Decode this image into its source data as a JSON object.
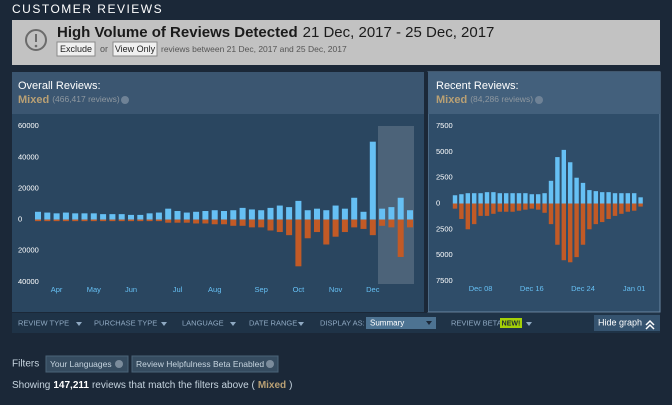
{
  "header": {
    "title": "CUSTOMER REVIEWS"
  },
  "banner": {
    "title": "High Volume of Reviews Detected",
    "dates": "21 Dec, 2017 - 25 Dec, 2017",
    "exclude": "Exclude",
    "or": "or",
    "view_only": "View Only",
    "note": "reviews between 21 Dec, 2017 and 25 Dec, 2017"
  },
  "summaries": [
    {
      "label": "Overall Reviews:",
      "rating": "Mixed",
      "count": "(466,417 reviews)"
    },
    {
      "label": "Recent Reviews:",
      "rating": "Mixed",
      "count": "(84,286 reviews)"
    }
  ],
  "chart_data": [
    {
      "type": "bar",
      "categories": [
        null,
        null,
        "Apr",
        null,
        null,
        null,
        "May",
        null,
        null,
        null,
        "Jun",
        null,
        null,
        null,
        null,
        "Jul",
        null,
        null,
        null,
        "Aug",
        null,
        null,
        null,
        null,
        "Sep",
        null,
        null,
        null,
        "Oct",
        null,
        null,
        null,
        "Nov",
        null,
        null,
        null,
        "Dec",
        null,
        null,
        null,
        null
      ],
      "series": [
        {
          "color": "#66c0f4",
          "values": [
            5000,
            4500,
            4000,
            4500,
            4000,
            4000,
            4000,
            3500,
            3500,
            3500,
            3000,
            3000,
            4000,
            4500,
            7000,
            5500,
            4500,
            5000,
            5500,
            6000,
            5500,
            6000,
            7500,
            6500,
            6000,
            7500,
            9000,
            8000,
            12000,
            6000,
            7000,
            6000,
            9000,
            7000,
            14000,
            5000,
            50000,
            7000,
            8000,
            14000,
            6000
          ]
        },
        {
          "color": "#c25a26",
          "values": [
            -1000,
            -1000,
            -1000,
            -1000,
            -1000,
            -1000,
            -1000,
            -1000,
            -1000,
            -1000,
            -1000,
            -1000,
            -1000,
            -1000,
            -2000,
            -2000,
            -2000,
            -2500,
            -2500,
            -3000,
            -3000,
            -4000,
            -4000,
            -5000,
            -5000,
            -7000,
            -8000,
            -10000,
            -30000,
            -12000,
            -8000,
            -16000,
            -11000,
            -8000,
            -5000,
            -6000,
            -10000,
            -4000,
            -5000,
            -24000,
            -5000
          ]
        }
      ],
      "ylim": [
        -42000,
        62000
      ],
      "yticks": [
        60000,
        40000,
        20000,
        0,
        {
          "value": -20000,
          "label": "20000"
        },
        {
          "value": -40000,
          "label": "40000"
        }
      ]
    },
    {
      "type": "bar",
      "categories": [
        null,
        null,
        null,
        null,
        "Dec 08",
        null,
        null,
        null,
        null,
        null,
        null,
        null,
        "Dec 16",
        null,
        null,
        null,
        null,
        null,
        null,
        null,
        "Dec 24",
        null,
        null,
        null,
        null,
        null,
        null,
        null,
        "Jan 01",
        null
      ],
      "series": [
        {
          "color": "#66c0f4",
          "values": [
            800,
            900,
            1000,
            1000,
            1000,
            1100,
            1100,
            1000,
            1000,
            1000,
            1000,
            1000,
            900,
            900,
            1000,
            2200,
            4500,
            5200,
            4000,
            2500,
            2000,
            1300,
            1200,
            1100,
            1100,
            1000,
            1000,
            1000,
            1000,
            600
          ]
        },
        {
          "color": "#c25a26",
          "values": [
            -500,
            -1500,
            -2500,
            -2000,
            -1200,
            -1200,
            -1000,
            -800,
            -800,
            -800,
            -700,
            -600,
            -500,
            -600,
            -900,
            -2000,
            -4000,
            -5500,
            -5700,
            -5200,
            -4000,
            -2500,
            -2000,
            -1800,
            -1500,
            -1200,
            -1000,
            -800,
            -700,
            -300
          ]
        }
      ],
      "ylim": [
        -8000,
        8000
      ],
      "yticks": [
        7500,
        5000,
        2500,
        0,
        {
          "value": -2500,
          "label": "2500"
        },
        {
          "value": -5000,
          "label": "5000"
        },
        {
          "value": -7500,
          "label": "7500"
        }
      ]
    }
  ],
  "filter_bar": {
    "menus": [
      "REVIEW TYPE",
      "PURCHASE TYPE",
      "LANGUAGE",
      "DATE RANGE"
    ],
    "display_as": "DISPLAY AS:",
    "display_value": "Summary",
    "beta": "REVIEW BETA",
    "new": "NEW!",
    "hide": "Hide graph"
  },
  "filters": {
    "label": "Filters",
    "tags": [
      "Your Languages",
      "Review Helpfulness Beta Enabled"
    ]
  },
  "summary_line": {
    "prefix": "Showing",
    "count": "147,211",
    "middle": "reviews that match the filters above (",
    "rating": "Mixed",
    "suffix": ")"
  }
}
